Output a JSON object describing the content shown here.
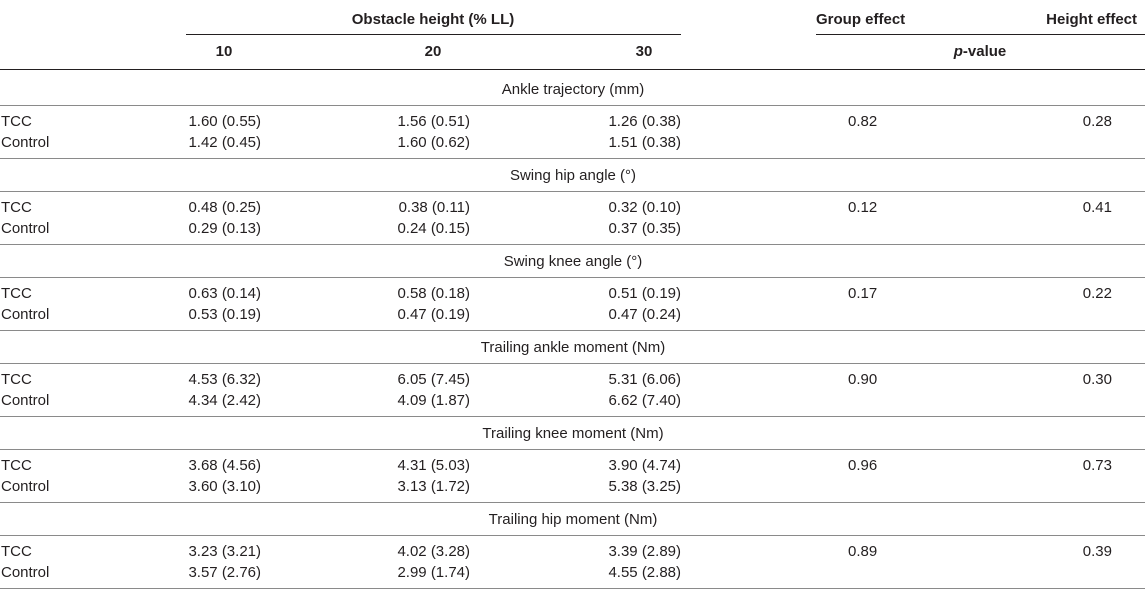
{
  "header": {
    "obstacle_height": "Obstacle height (% LL)",
    "group_effect": "Group effect",
    "height_effect": "Height effect",
    "col_10": "10",
    "col_20": "20",
    "col_30": "30",
    "p_italic": "p",
    "p_rest": "-value"
  },
  "sections": [
    {
      "title": "Ankle trajectory (mm)",
      "rows": [
        {
          "label": "TCC",
          "v10": "1.60 (0.55)",
          "v20": "1.56 (0.51)",
          "v30": "1.26 (0.38)",
          "group": "0.82",
          "height": "0.28"
        },
        {
          "label": "Control",
          "v10": "1.42 (0.45)",
          "v20": "1.60 (0.62)",
          "v30": "1.51 (0.38)"
        }
      ]
    },
    {
      "title": "Swing hip angle (°)",
      "rows": [
        {
          "label": "TCC",
          "v10": "0.48 (0.25)",
          "v20": "0.38 (0.11)",
          "v30": "0.32 (0.10)",
          "group": "0.12",
          "height": "0.41"
        },
        {
          "label": "Control",
          "v10": "0.29 (0.13)",
          "v20": "0.24 (0.15)",
          "v30": "0.37 (0.35)"
        }
      ]
    },
    {
      "title": "Swing knee angle (°)",
      "rows": [
        {
          "label": "TCC",
          "v10": "0.63 (0.14)",
          "v20": "0.58 (0.18)",
          "v30": "0.51 (0.19)",
          "group": "0.17",
          "height": "0.22"
        },
        {
          "label": "Control",
          "v10": "0.53 (0.19)",
          "v20": "0.47 (0.19)",
          "v30": "0.47 (0.24)"
        }
      ]
    },
    {
      "title": "Trailing ankle moment (Nm)",
      "rows": [
        {
          "label": "TCC",
          "v10": "4.53 (6.32)",
          "v20": "6.05 (7.45)",
          "v30": "5.31 (6.06)",
          "group": "0.90",
          "height": "0.30"
        },
        {
          "label": "Control",
          "v10": "4.34 (2.42)",
          "v20": "4.09 (1.87)",
          "v30": "6.62 (7.40)"
        }
      ]
    },
    {
      "title": "Trailing knee moment (Nm)",
      "rows": [
        {
          "label": "TCC",
          "v10": "3.68 (4.56)",
          "v20": "4.31 (5.03)",
          "v30": "3.90 (4.74)",
          "group": "0.96",
          "height": "0.73"
        },
        {
          "label": "Control",
          "v10": "3.60 (3.10)",
          "v20": "3.13 (1.72)",
          "v30": "5.38 (3.25)"
        }
      ]
    },
    {
      "title": "Trailing hip moment (Nm)",
      "rows": [
        {
          "label": "TCC",
          "v10": "3.23 (3.21)",
          "v20": "4.02 (3.28)",
          "v30": "3.39 (2.89)",
          "group": "0.89",
          "height": "0.39"
        },
        {
          "label": "Control",
          "v10": "3.57 (2.76)",
          "v20": "2.99 (1.74)",
          "v30": "4.55 (2.88)"
        }
      ]
    }
  ]
}
